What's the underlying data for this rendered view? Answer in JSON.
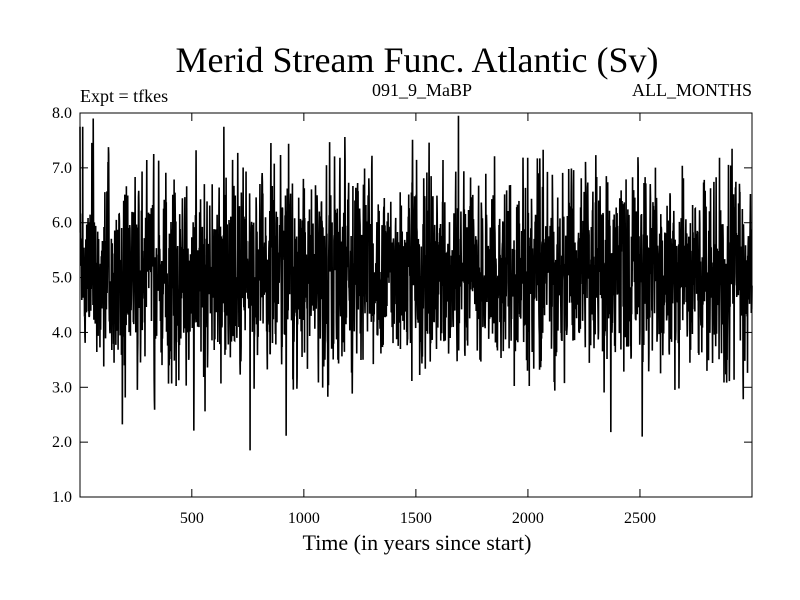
{
  "chart_data": {
    "type": "line",
    "title": "Merid Stream Func. Atlantic (Sv)",
    "subtitle_left": "Expt = tfkes",
    "subtitle_center": "091_9_MaBP",
    "subtitle_right": "ALL_MONTHS",
    "xlabel": "Time (in years since start)",
    "ylabel": "",
    "xlim": [
      1,
      3000
    ],
    "ylim": [
      1.0,
      8.0
    ],
    "x_ticks": [
      500,
      1000,
      1500,
      2000,
      2500
    ],
    "x_tick_labels": [
      "500",
      "1000",
      "1500",
      "2000",
      "2500"
    ],
    "y_ticks": [
      1.0,
      2.0,
      3.0,
      4.0,
      5.0,
      6.0,
      7.0,
      8.0
    ],
    "y_tick_labels": [
      "1.0",
      "2.0",
      "3.0",
      "4.0",
      "5.0",
      "6.0",
      "7.0",
      "8.0"
    ],
    "grid": false,
    "series": [
      {
        "color": "#000000",
        "x_start": 1,
        "x_step": 1,
        "values_mean": 5.1,
        "values_std": 0.85,
        "values_min": 1.85,
        "values_max": 7.95,
        "notable_points": [
          {
            "x": 60,
            "y": 7.9
          },
          {
            "x": 760,
            "y": 1.85
          },
          {
            "x": 1690,
            "y": 7.95
          },
          {
            "x": 2510,
            "y": 2.1
          }
        ]
      }
    ]
  }
}
